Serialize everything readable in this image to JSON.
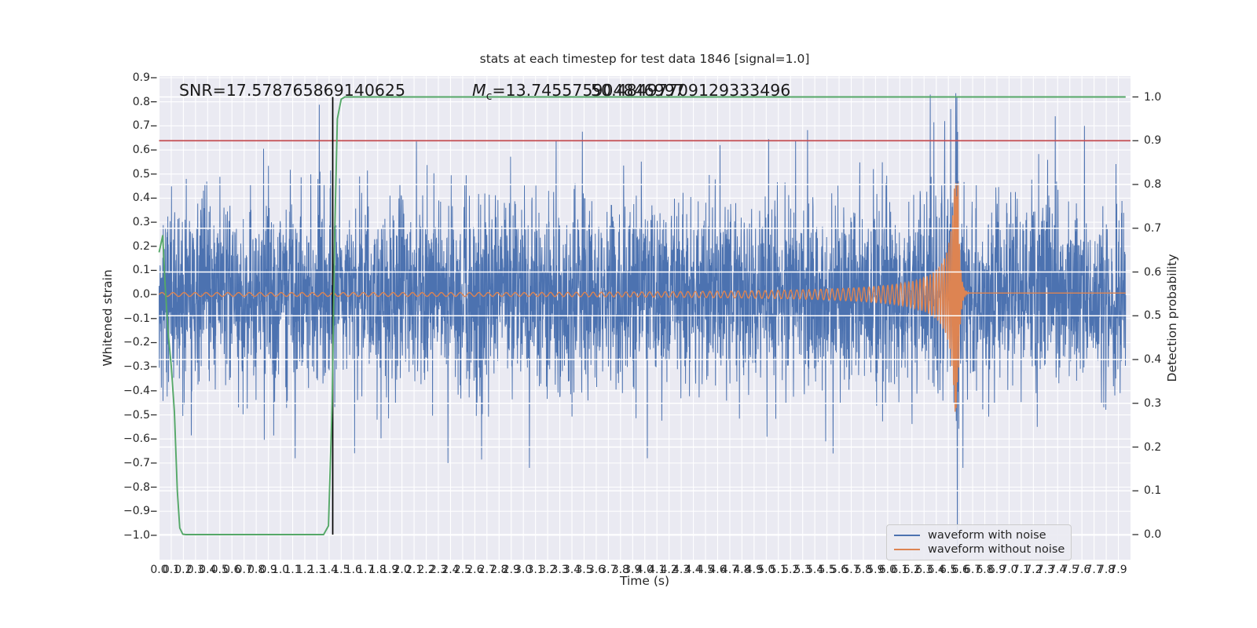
{
  "figure": {
    "title": "stats at each timestep for test data 1846 [signal=1.0]",
    "xlabel": "Time (s)",
    "ylabel_left": "Whitened strain",
    "ylabel_right": "Detection probability"
  },
  "annotations": {
    "snr": "SNR=17.578765869140625",
    "mc_m": "M",
    "mc_sub": "c",
    "mc_value": "=13.745575904846997",
    "overlap_value": "50.48497709129333496"
  },
  "legend": {
    "items": [
      {
        "label": "waveform with noise",
        "color": "#4C72B0"
      },
      {
        "label": "waveform without noise",
        "color": "#DD8452"
      }
    ]
  },
  "colors": {
    "plot_background": "#EAEAF2",
    "grid": "#FFFFFF",
    "noise_line": "#4C72B0",
    "signal_line": "#DD8452",
    "probability_line": "#55A868",
    "threshold_line": "#C44E52",
    "marker_line": "#000000",
    "text": "#262626"
  },
  "chart_data": {
    "type": "line",
    "title": "stats at each timestep for test data 1846 [signal=1.0]",
    "xlabel": "Time (s)",
    "ylabel_left": "Whitened strain",
    "ylabel_right": "Detection probability",
    "grid": true,
    "legend_position": "lower right",
    "x_axis": {
      "lim": [
        0,
        8
      ],
      "tick_labels": [
        "0.0",
        "0.1",
        "0.2",
        "0.3",
        "0.4",
        "0.5",
        "0.6",
        "0.7",
        "0.8",
        "0.9",
        "1.0",
        "1.1",
        "1.2",
        "1.3",
        "1.4",
        "1.5",
        "1.6",
        "1.7",
        "1.8",
        "1.9",
        "2.0",
        "2.1",
        "2.2",
        "2.3",
        "2.4",
        "2.5",
        "2.6",
        "2.7",
        "2.8",
        "2.9",
        "3.0",
        "3.1",
        "3.2",
        "3.3",
        "3.4",
        "3.5",
        "3.6",
        "3.7",
        "3.8",
        "3.9",
        "4.0",
        "4.1",
        "4.2",
        "4.3",
        "4.4",
        "4.5",
        "4.6",
        "4.7",
        "4.8",
        "4.9",
        "5.0",
        "5.1",
        "5.2",
        "5.3",
        "5.4",
        "5.5",
        "5.6",
        "5.7",
        "5.8",
        "5.9",
        "6.0",
        "6.1",
        "6.2",
        "6.3",
        "6.4",
        "6.5",
        "6.6",
        "6.7",
        "6.8",
        "6.9",
        "7.0",
        "7.1",
        "7.2",
        "7.3",
        "7.4",
        "7.5",
        "7.6",
        "7.7",
        "7.8",
        "7.9"
      ]
    },
    "y_axis_left": {
      "lim": [
        -1.11,
        0.91
      ],
      "tick_labels": [
        "0.9",
        "0.8",
        "0.7",
        "0.6",
        "0.5",
        "0.4",
        "0.3",
        "0.2",
        "0.1",
        "0.0",
        "−0.1",
        "−0.2",
        "−0.3",
        "−0.4",
        "−0.5",
        "−0.6",
        "−0.7",
        "−0.8",
        "−0.9",
        "−1.0"
      ],
      "tick_values": [
        0.9,
        0.8,
        0.7,
        0.6,
        0.5,
        0.4,
        0.3,
        0.2,
        0.1,
        0.0,
        -0.1,
        -0.2,
        -0.3,
        -0.4,
        -0.5,
        -0.6,
        -0.7,
        -0.8,
        -0.9,
        -1.0
      ]
    },
    "y_axis_right": {
      "lim": [
        -0.05,
        1.06
      ],
      "tick_labels": [
        "1.0",
        "0.9",
        "0.8",
        "0.7",
        "0.6",
        "0.5",
        "0.4",
        "0.3",
        "0.2",
        "0.1",
        "0.0"
      ],
      "tick_values": [
        1.0,
        0.9,
        0.8,
        0.7,
        0.6,
        0.5,
        0.4,
        0.3,
        0.2,
        0.1,
        0.0
      ]
    },
    "series": [
      {
        "name": "waveform with noise",
        "color": "#4C72B0",
        "axis": "left",
        "model": "gaussian_noise_plus_signal",
        "n": 4200,
        "sigma": 0.195,
        "seed": 18460,
        "t_start": 0.0,
        "t_end": 7.96,
        "clamp": [
          -1.08,
          0.84
        ],
        "spikes": [
          [
            0.86,
            0.605
          ],
          [
            1.12,
            -0.68
          ],
          [
            2.12,
            0.635
          ],
          [
            2.38,
            -0.7
          ],
          [
            3.05,
            -0.72
          ],
          [
            3.27,
            0.64
          ],
          [
            4.02,
            -0.68
          ],
          [
            4.62,
            0.62
          ],
          [
            5.02,
            0.645
          ],
          [
            5.55,
            -0.66
          ],
          [
            6.35,
            0.83
          ],
          [
            6.47,
            0.72
          ],
          [
            6.52,
            0.77
          ],
          [
            6.575,
            -1.07
          ],
          [
            6.62,
            -0.72
          ],
          [
            7.38,
            0.74
          ],
          [
            7.62,
            0.7
          ]
        ]
      },
      {
        "name": "waveform without noise",
        "color": "#DD8452",
        "axis": "left",
        "model": "chirp",
        "n": 4200,
        "t_start": 0.0,
        "t_end": 7.96,
        "t_merger": 6.58,
        "amp_coef": 0.024,
        "amp_exp": 0.85,
        "amp_floor": 0.008,
        "amp_max": 0.5,
        "freq_coef": 22,
        "freq_exp": 0.375,
        "ringdown_amp": 0.45,
        "ringdown_tau": 0.016,
        "ringdown_omega": 520,
        "post_merger_level": 0.006
      },
      {
        "name": "detection probability",
        "color": "#55A868",
        "axis": "right",
        "model": "polyline",
        "points": [
          [
            0,
            0.645
          ],
          [
            0.03,
            0.683
          ],
          [
            0.05,
            0.57
          ],
          [
            0.075,
            0.46
          ],
          [
            0.1,
            0.385
          ],
          [
            0.126,
            0.28
          ],
          [
            0.15,
            0.1
          ],
          [
            0.17,
            0.015
          ],
          [
            0.195,
            0.001
          ],
          [
            0.22,
            0
          ],
          [
            1.355,
            0
          ],
          [
            1.395,
            0.02
          ],
          [
            1.425,
            0.3
          ],
          [
            1.447,
            0.7
          ],
          [
            1.468,
            0.95
          ],
          [
            1.5,
            0.995
          ],
          [
            1.53,
            1.0
          ],
          [
            7.96,
            1.0
          ]
        ]
      },
      {
        "name": "detection threshold",
        "color": "#C44E52",
        "axis": "right",
        "model": "hline",
        "value": 0.9
      },
      {
        "name": "event time marker",
        "color": "#000000",
        "axis": "right",
        "model": "vline",
        "x": 1.43,
        "y_span": [
          0.0,
          1.0
        ]
      }
    ]
  }
}
